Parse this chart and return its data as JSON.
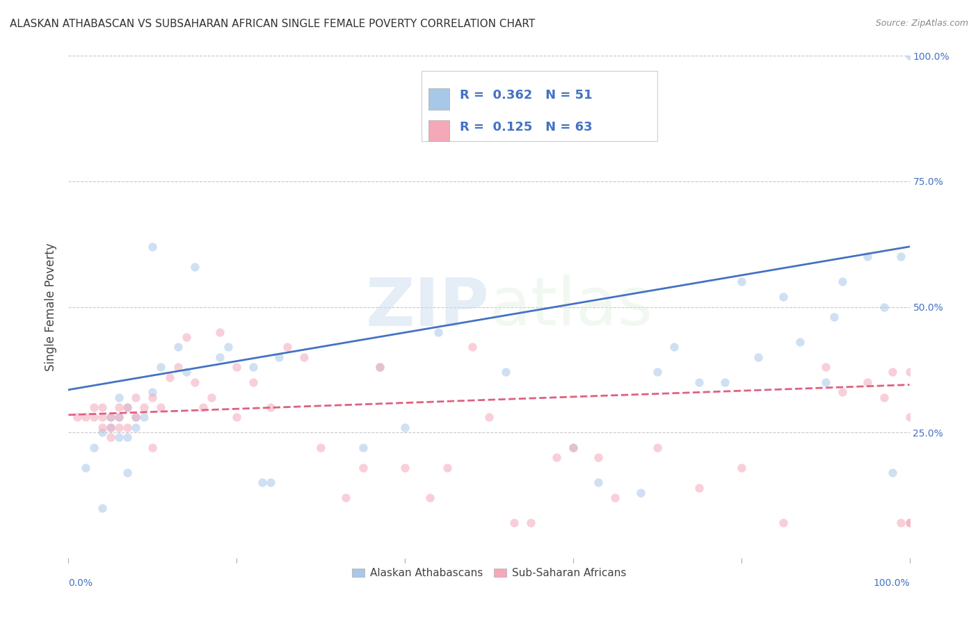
{
  "title": "ALASKAN ATHABASCAN VS SUBSAHARAN AFRICAN SINGLE FEMALE POVERTY CORRELATION CHART",
  "source": "Source: ZipAtlas.com",
  "ylabel": "Single Female Poverty",
  "xlim": [
    0.0,
    1.0
  ],
  "ylim": [
    0.0,
    1.0
  ],
  "yticks": [
    0.25,
    0.5,
    0.75,
    1.0
  ],
  "ytick_labels": [
    "25.0%",
    "50.0%",
    "75.0%",
    "100.0%"
  ],
  "blue_color": "#A8C8E8",
  "pink_color": "#F4A8B8",
  "blue_line_color": "#4472C4",
  "pink_line_color": "#E06080",
  "grid_color": "#C8C8C8",
  "watermark_zip": "ZIP",
  "watermark_atlas": "atlas",
  "legend_r1": "0.362",
  "legend_n1": "51",
  "legend_r2": "0.125",
  "legend_n2": "63",
  "legend_label1": "Alaskan Athabascans",
  "legend_label2": "Sub-Saharan Africans",
  "blue_scatter_x": [
    0.02,
    0.03,
    0.04,
    0.04,
    0.05,
    0.05,
    0.06,
    0.06,
    0.06,
    0.07,
    0.07,
    0.07,
    0.08,
    0.08,
    0.09,
    0.1,
    0.1,
    0.11,
    0.13,
    0.14,
    0.15,
    0.18,
    0.19,
    0.22,
    0.23,
    0.24,
    0.25,
    0.35,
    0.37,
    0.4,
    0.44,
    0.52,
    0.6,
    0.63,
    0.68,
    0.7,
    0.72,
    0.75,
    0.78,
    0.8,
    0.82,
    0.85,
    0.87,
    0.9,
    0.91,
    0.92,
    0.95,
    0.97,
    0.98,
    0.99,
    1.0
  ],
  "blue_scatter_y": [
    0.18,
    0.22,
    0.25,
    0.1,
    0.28,
    0.26,
    0.28,
    0.24,
    0.32,
    0.3,
    0.24,
    0.17,
    0.28,
    0.26,
    0.28,
    0.62,
    0.33,
    0.38,
    0.42,
    0.37,
    0.58,
    0.4,
    0.42,
    0.38,
    0.15,
    0.15,
    0.4,
    0.22,
    0.38,
    0.26,
    0.45,
    0.37,
    0.22,
    0.15,
    0.13,
    0.37,
    0.42,
    0.35,
    0.35,
    0.55,
    0.4,
    0.52,
    0.43,
    0.35,
    0.48,
    0.55,
    0.6,
    0.5,
    0.17,
    0.6,
    1.0
  ],
  "pink_scatter_x": [
    0.01,
    0.02,
    0.03,
    0.03,
    0.04,
    0.04,
    0.04,
    0.05,
    0.05,
    0.05,
    0.06,
    0.06,
    0.06,
    0.07,
    0.07,
    0.08,
    0.08,
    0.09,
    0.1,
    0.1,
    0.11,
    0.12,
    0.13,
    0.14,
    0.15,
    0.16,
    0.17,
    0.18,
    0.2,
    0.2,
    0.22,
    0.24,
    0.26,
    0.28,
    0.3,
    0.33,
    0.35,
    0.37,
    0.4,
    0.43,
    0.45,
    0.48,
    0.5,
    0.53,
    0.55,
    0.58,
    0.6,
    0.63,
    0.65,
    0.7,
    0.75,
    0.8,
    0.85,
    0.9,
    0.92,
    0.95,
    0.97,
    0.98,
    0.99,
    1.0,
    1.0,
    1.0,
    1.0
  ],
  "pink_scatter_y": [
    0.28,
    0.28,
    0.3,
    0.28,
    0.28,
    0.26,
    0.3,
    0.28,
    0.24,
    0.26,
    0.28,
    0.26,
    0.3,
    0.3,
    0.26,
    0.32,
    0.28,
    0.3,
    0.32,
    0.22,
    0.3,
    0.36,
    0.38,
    0.44,
    0.35,
    0.3,
    0.32,
    0.45,
    0.38,
    0.28,
    0.35,
    0.3,
    0.42,
    0.4,
    0.22,
    0.12,
    0.18,
    0.38,
    0.18,
    0.12,
    0.18,
    0.42,
    0.28,
    0.07,
    0.07,
    0.2,
    0.22,
    0.2,
    0.12,
    0.22,
    0.14,
    0.18,
    0.07,
    0.38,
    0.33,
    0.35,
    0.32,
    0.37,
    0.07,
    0.37,
    0.28,
    0.07,
    0.07
  ],
  "blue_trendline": [
    [
      0.0,
      0.335
    ],
    [
      1.0,
      0.62
    ]
  ],
  "pink_trendline": [
    [
      0.0,
      0.285
    ],
    [
      1.0,
      0.345
    ]
  ],
  "background_color": "#FFFFFF",
  "scatter_size": 80,
  "scatter_alpha": 0.55
}
